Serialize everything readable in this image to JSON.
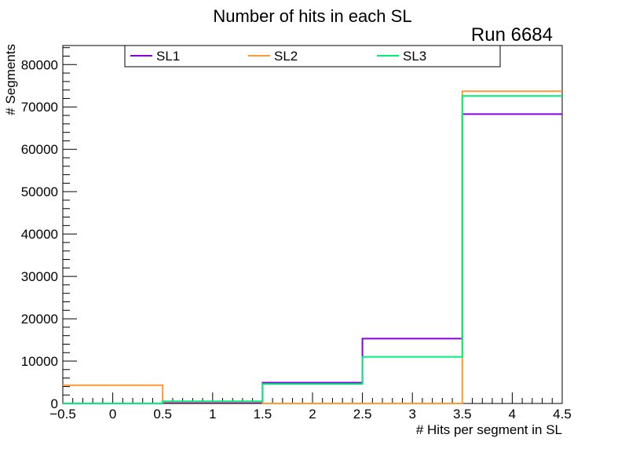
{
  "chart_data": {
    "type": "histogram-step",
    "title": "Number of hits in each SL",
    "annotation": "Run 6684",
    "xlabel": "# Hits per segment in SL",
    "ylabel": "# Segments",
    "xlim": [
      -0.5,
      4.5
    ],
    "ylim": [
      0,
      84500
    ],
    "xticks": [
      -0.5,
      0,
      0.5,
      1,
      1.5,
      2,
      2.5,
      3,
      3.5,
      4,
      4.5
    ],
    "xtick_labels": [
      "−0.5",
      "0",
      "0.5",
      "1",
      "1.5",
      "2",
      "2.5",
      "3",
      "3.5",
      "4",
      "4.5"
    ],
    "yticks": [
      0,
      10000,
      20000,
      30000,
      40000,
      50000,
      60000,
      70000,
      80000
    ],
    "ytick_labels": [
      "0",
      "10000",
      "20000",
      "30000",
      "40000",
      "50000",
      "60000",
      "70000",
      "80000"
    ],
    "bin_edges": [
      -0.5,
      0.5,
      1.5,
      2.5,
      3.5,
      4.5
    ],
    "series": [
      {
        "name": "SL1",
        "color": "#8800dd",
        "values": [
          0,
          200,
          4900,
          15300,
          68300
        ]
      },
      {
        "name": "SL2",
        "color": "#ff9933",
        "values": [
          4300,
          400,
          0,
          0,
          73700
        ]
      },
      {
        "name": "SL3",
        "color": "#00ee77",
        "values": [
          0,
          500,
          4600,
          11000,
          72600
        ]
      }
    ],
    "legend": {
      "position": "top",
      "entries": [
        "SL1",
        "SL2",
        "SL3"
      ]
    },
    "grid": false
  }
}
